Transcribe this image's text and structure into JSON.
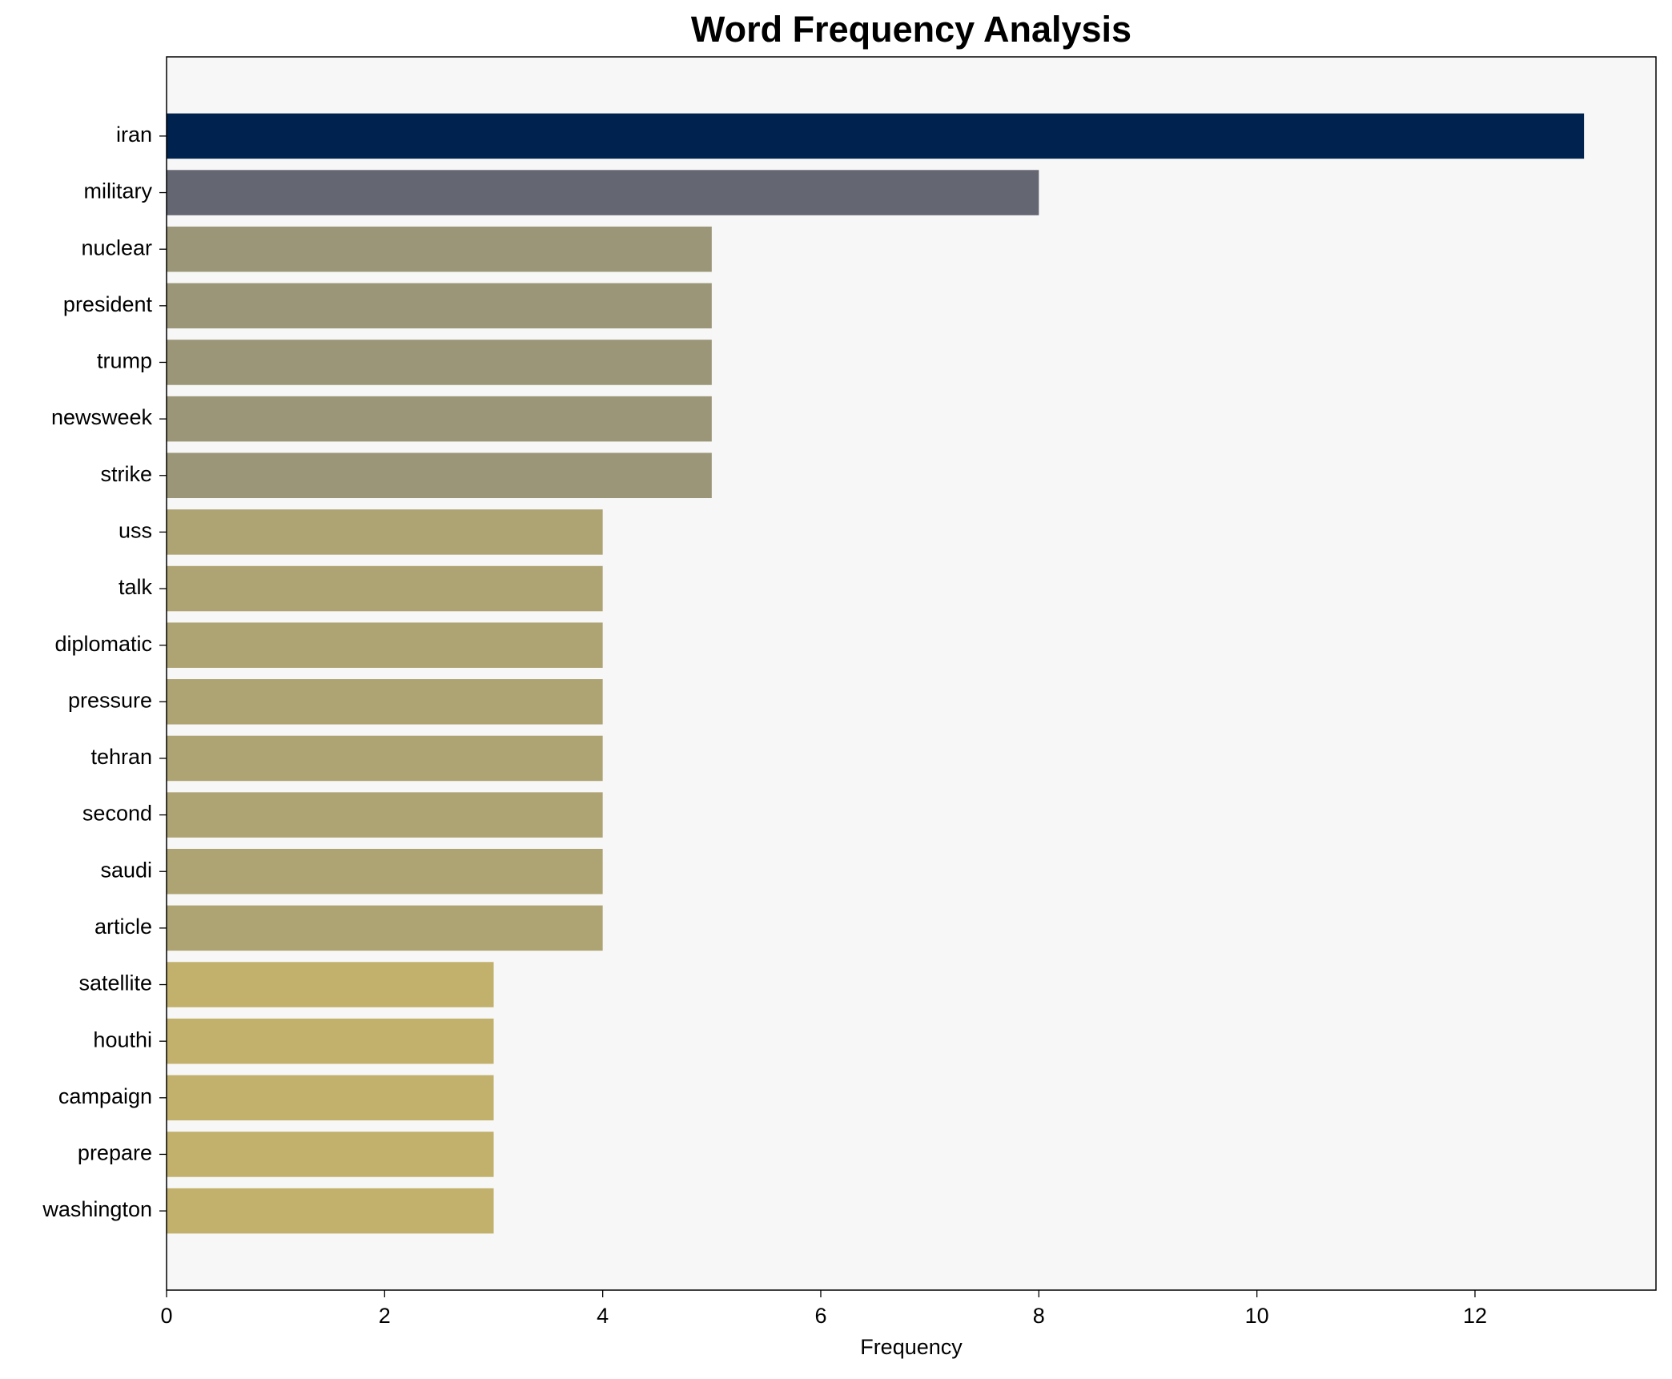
{
  "chart_data": {
    "type": "barh",
    "title": "Word Frequency Analysis",
    "xlabel": "Frequency",
    "categories": [
      "iran",
      "military",
      "nuclear",
      "president",
      "trump",
      "newsweek",
      "strike",
      "uss",
      "talk",
      "diplomatic",
      "pressure",
      "tehran",
      "second",
      "saudi",
      "article",
      "satellite",
      "houthi",
      "campaign",
      "prepare",
      "washington"
    ],
    "values": [
      13,
      8,
      5,
      5,
      5,
      5,
      5,
      4,
      4,
      4,
      4,
      4,
      4,
      4,
      4,
      3,
      3,
      3,
      3,
      3
    ],
    "colors": [
      "#00224e",
      "#646672",
      "#9b9677",
      "#9b9677",
      "#9b9677",
      "#9b9677",
      "#9b9677",
      "#aea373",
      "#aea373",
      "#aea373",
      "#aea373",
      "#aea373",
      "#aea373",
      "#aea373",
      "#aea373",
      "#c1b16c",
      "#c1b16c",
      "#c1b16c",
      "#c1b16c",
      "#c1b16c"
    ],
    "xlim": [
      0,
      13.66
    ],
    "xticks": [
      0,
      2,
      4,
      6,
      8,
      10,
      12
    ],
    "grid": false
  }
}
